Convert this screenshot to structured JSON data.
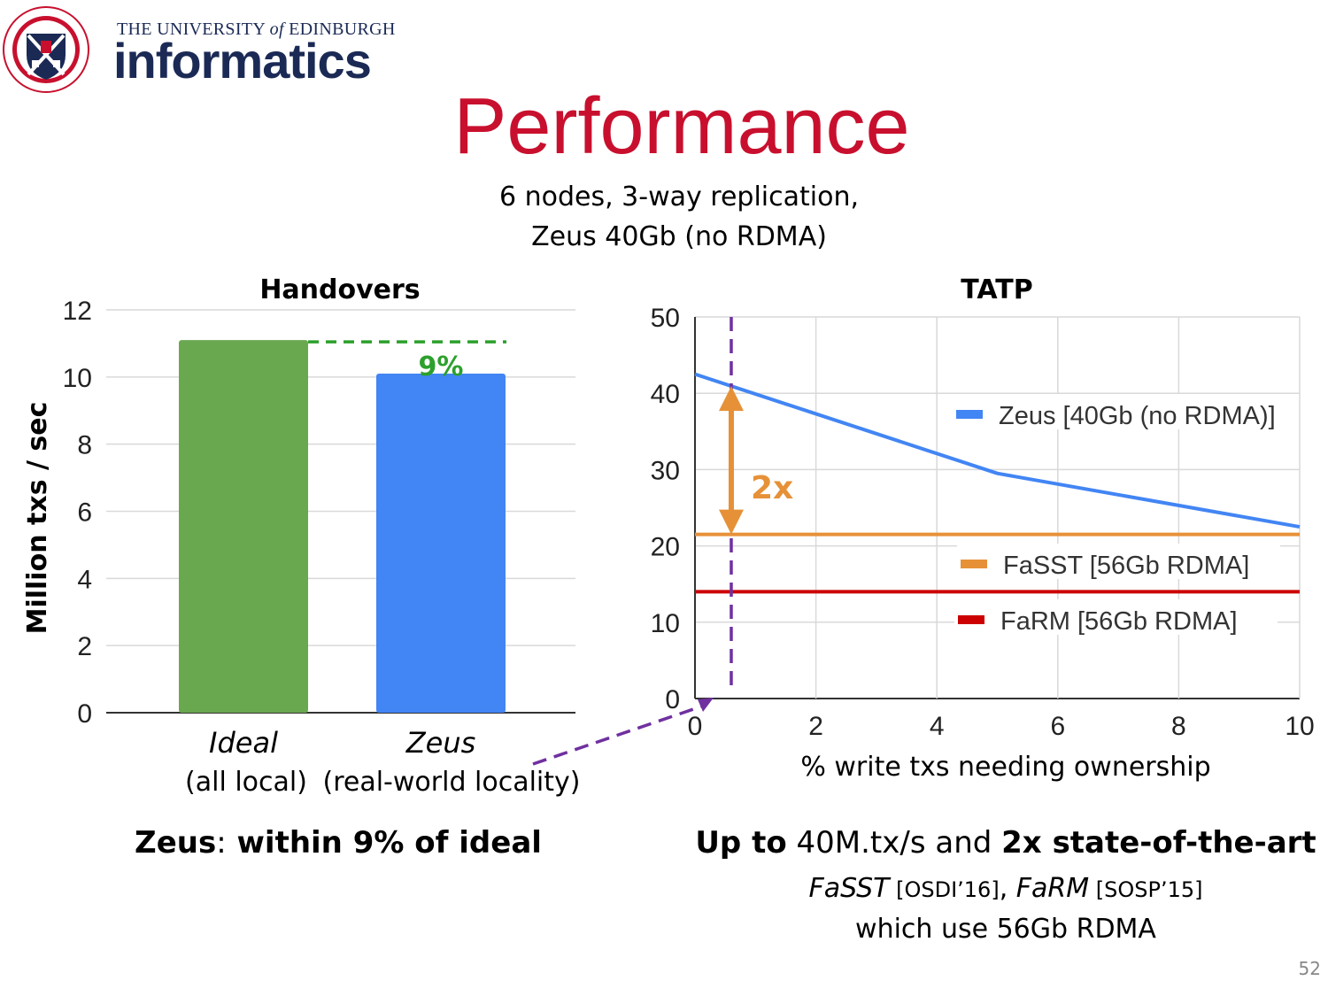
{
  "header": {
    "uni_prefix": "THE UNIVERSITY",
    "uni_of": "of",
    "uni_suffix": "EDINBURGH",
    "brand": "informatics",
    "seal_text": "THE UNIVERSITY OF EDINBURGH"
  },
  "title": "Performance",
  "subtitle_line1": "6 nodes, 3-way replication,",
  "subtitle_line2": "Zeus 40Gb (no RDMA)",
  "colors": {
    "title_red": "#c8102e",
    "brand_navy": "#1b2a55",
    "ideal_green": "#6aa84f",
    "zeus_blue": "#4285f4",
    "fasst_orange": "#e69138",
    "farm_red": "#cc0000",
    "annotation_purple": "#7030a0",
    "gap_green": "#2ca02c",
    "arrow_orange": "#e69138"
  },
  "chart_data": [
    {
      "type": "bar",
      "title": "Handovers",
      "ylabel": "Million txs / sec",
      "ylim": [
        0,
        12
      ],
      "yticks": [
        "0",
        "2",
        "4",
        "6",
        "8",
        "10",
        "12"
      ],
      "grid": true,
      "categories": [
        "Ideal",
        "Zeus"
      ],
      "category_sublabels": [
        "(all local)",
        "(real-world locality)"
      ],
      "values": [
        11.1,
        10.1
      ],
      "annotation": "9%"
    },
    {
      "type": "line",
      "title": "TATP",
      "xlabel": "% write txs needing ownership",
      "xlim": [
        0,
        10
      ],
      "ylim": [
        0,
        50
      ],
      "xticks": [
        "0",
        "2",
        "4",
        "6",
        "8",
        "10"
      ],
      "yticks": [
        "0",
        "10",
        "20",
        "30",
        "40",
        "50"
      ],
      "grid": true,
      "legend_position": "right",
      "series": [
        {
          "name": "Zeus [40Gb (no RDMA)]",
          "x": [
            0,
            5,
            10
          ],
          "y": [
            42.5,
            29.5,
            22.5
          ]
        },
        {
          "name": "FaSST [56Gb RDMA]",
          "x": [
            0,
            10
          ],
          "y": [
            21.5,
            21.5
          ]
        },
        {
          "name": "FaRM [56Gb RDMA]",
          "x": [
            0,
            10
          ],
          "y": [
            14,
            14
          ]
        }
      ],
      "marker_x": 0.6,
      "arrow_label": "2x"
    }
  ],
  "captions": {
    "left_bold1": "Zeus",
    "left_sep": ":",
    "left_bold2": " within 9% of ideal",
    "right_bold1": "Up to",
    "right_mid": " 40M.tx/s and ",
    "right_bold2": "2x state-of-the-art",
    "refs_sys1": "FaSST",
    "refs_cite1": " [OSDI’16]",
    "refs_comma": ", ",
    "refs_sys2": "FaRM",
    "refs_cite2": " [SOSP’15]",
    "refs_line2": "which use 56Gb RDMA"
  },
  "page_number": "52"
}
